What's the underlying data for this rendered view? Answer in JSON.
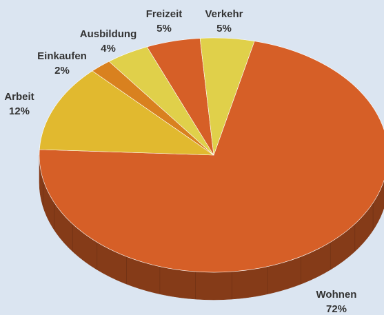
{
  "chart_data": {
    "type": "pie3d",
    "categories": [
      "Wohnen",
      "Arbeit",
      "Einkaufen",
      "Ausbildung",
      "Freizeit",
      "Verkehr"
    ],
    "values": [
      72,
      12,
      2,
      4,
      5,
      5
    ],
    "value_labels": [
      "72%",
      "12%",
      "2%",
      "4%",
      "5%",
      "5%"
    ],
    "colors": [
      "#d65f27",
      "#e1b92f",
      "#d9811f",
      "#e0d04a",
      "#d65f27",
      "#e0d04a"
    ]
  }
}
